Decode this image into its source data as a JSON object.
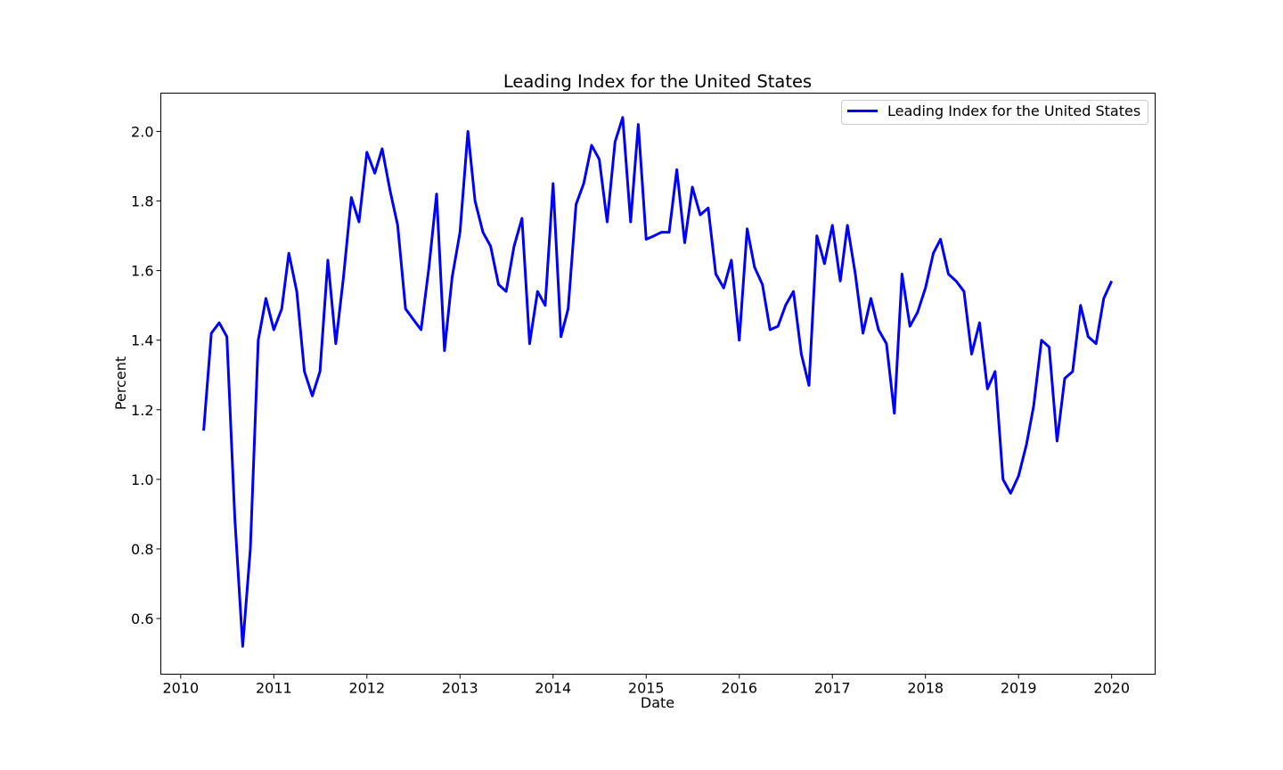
{
  "chart_data": {
    "type": "line",
    "title": "Leading Index for the United States",
    "xlabel": "Date",
    "ylabel": "Percent",
    "xlim": [
      "2009-10-15",
      "2020-06-20"
    ],
    "ylim": [
      0.44,
      2.11
    ],
    "x_ticks": [
      "2010",
      "2011",
      "2012",
      "2013",
      "2014",
      "2015",
      "2016",
      "2017",
      "2018",
      "2019",
      "2020"
    ],
    "y_ticks": [
      "0.6",
      "0.8",
      "1.0",
      "1.2",
      "1.4",
      "1.6",
      "1.8",
      "2.0"
    ],
    "grid": false,
    "legend_position": "top-right",
    "series": [
      {
        "name": "Leading Index for the United States",
        "color": "#0000ff",
        "x": [
          "2010-04",
          "2010-05",
          "2010-06",
          "2010-07",
          "2010-08",
          "2010-09",
          "2010-10",
          "2010-11",
          "2010-12",
          "2011-01",
          "2011-02",
          "2011-03",
          "2011-04",
          "2011-05",
          "2011-06",
          "2011-07",
          "2011-08",
          "2011-09",
          "2011-10",
          "2011-11",
          "2011-12",
          "2012-01",
          "2012-02",
          "2012-03",
          "2012-04",
          "2012-05",
          "2012-06",
          "2012-07",
          "2012-08",
          "2012-09",
          "2012-10",
          "2012-11",
          "2012-12",
          "2013-01",
          "2013-02",
          "2013-03",
          "2013-04",
          "2013-05",
          "2013-06",
          "2013-07",
          "2013-08",
          "2013-09",
          "2013-10",
          "2013-11",
          "2013-12",
          "2014-01",
          "2014-02",
          "2014-03",
          "2014-04",
          "2014-05",
          "2014-06",
          "2014-07",
          "2014-08",
          "2014-09",
          "2014-10",
          "2014-11",
          "2014-12",
          "2015-01",
          "2015-02",
          "2015-03",
          "2015-04",
          "2015-05",
          "2015-06",
          "2015-07",
          "2015-08",
          "2015-09",
          "2015-10",
          "2015-11",
          "2015-12",
          "2016-01",
          "2016-02",
          "2016-03",
          "2016-04",
          "2016-05",
          "2016-06",
          "2016-07",
          "2016-08",
          "2016-09",
          "2016-10",
          "2016-11",
          "2016-12",
          "2017-01",
          "2017-02",
          "2017-03",
          "2017-04",
          "2017-05",
          "2017-06",
          "2017-07",
          "2017-08",
          "2017-09",
          "2017-10",
          "2017-11",
          "2017-12",
          "2018-01",
          "2018-02",
          "2018-03",
          "2018-04",
          "2018-05",
          "2018-06",
          "2018-07",
          "2018-08",
          "2018-09",
          "2018-10",
          "2018-11",
          "2018-12",
          "2019-01",
          "2019-02",
          "2019-03",
          "2019-04",
          "2019-05",
          "2019-06",
          "2019-07",
          "2019-08",
          "2019-09",
          "2019-10",
          "2019-11",
          "2019-12",
          "2020-01"
        ],
        "values": [
          1.14,
          1.42,
          1.45,
          1.41,
          0.89,
          0.52,
          0.8,
          1.4,
          1.52,
          1.43,
          1.49,
          1.65,
          1.54,
          1.31,
          1.24,
          1.31,
          1.63,
          1.39,
          1.58,
          1.81,
          1.74,
          1.94,
          1.88,
          1.95,
          1.83,
          1.73,
          1.49,
          1.46,
          1.43,
          1.61,
          1.82,
          1.37,
          1.58,
          1.71,
          2.0,
          1.8,
          1.71,
          1.67,
          1.56,
          1.54,
          1.67,
          1.75,
          1.39,
          1.54,
          1.5,
          1.85,
          1.41,
          1.49,
          1.79,
          1.85,
          1.96,
          1.92,
          1.74,
          1.97,
          2.04,
          1.74,
          2.02,
          1.69,
          1.7,
          1.71,
          1.71,
          1.89,
          1.68,
          1.84,
          1.76,
          1.78,
          1.59,
          1.55,
          1.63,
          1.4,
          1.72,
          1.61,
          1.56,
          1.43,
          1.44,
          1.5,
          1.54,
          1.36,
          1.27,
          1.7,
          1.62,
          1.73,
          1.57,
          1.73,
          1.59,
          1.42,
          1.52,
          1.43,
          1.39,
          1.19,
          1.59,
          1.44,
          1.48,
          1.55,
          1.65,
          1.69,
          1.59,
          1.57,
          1.54,
          1.36,
          1.45,
          1.26,
          1.31,
          1.0,
          0.96,
          1.01,
          1.1,
          1.21,
          1.4,
          1.38,
          1.11,
          1.29,
          1.31,
          1.5,
          1.41,
          1.39,
          1.52,
          1.57
        ]
      }
    ]
  }
}
